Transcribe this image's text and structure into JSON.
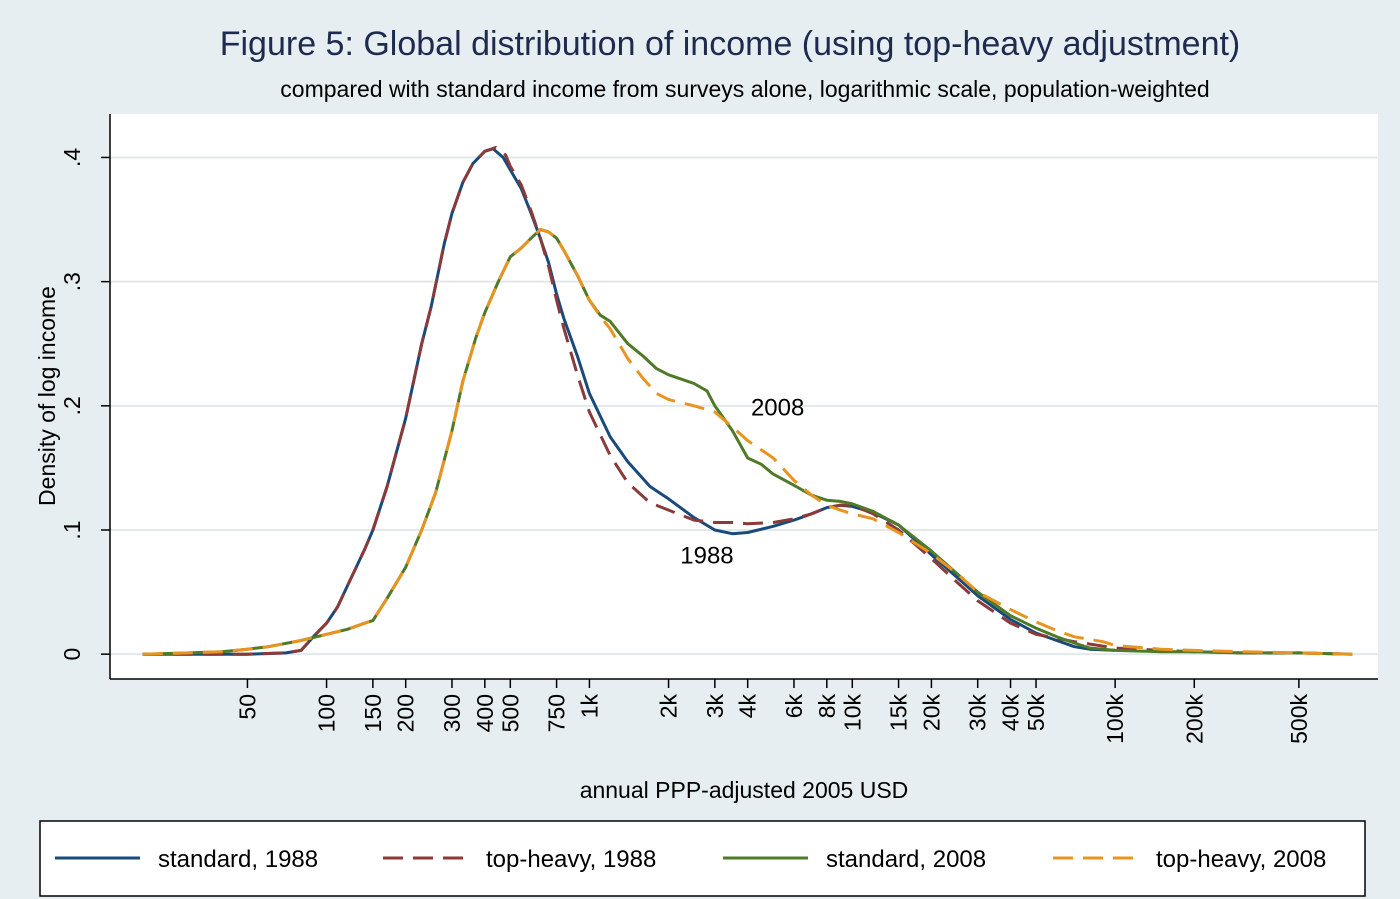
{
  "chart_data": {
    "type": "line",
    "title": "Figure 5: Global distribution of income (using top-heavy adjustment)",
    "subtitle": "compared with standard income from surveys alone, logarithmic scale, population-weighted",
    "xlabel": "annual PPP-adjusted 2005 USD",
    "ylabel": "Density of log income",
    "x_scale": "log",
    "xlim": [
      15,
      1000000
    ],
    "ylim": [
      -0.02,
      0.435
    ],
    "grid": true,
    "legend_position": "bottom",
    "x_ticks": [
      {
        "value": 50,
        "label": "50"
      },
      {
        "value": 100,
        "label": "100"
      },
      {
        "value": 150,
        "label": "150"
      },
      {
        "value": 200,
        "label": "200"
      },
      {
        "value": 300,
        "label": "300"
      },
      {
        "value": 400,
        "label": "400"
      },
      {
        "value": 500,
        "label": "500"
      },
      {
        "value": 750,
        "label": "750"
      },
      {
        "value": 1000,
        "label": "1k"
      },
      {
        "value": 2000,
        "label": "2k"
      },
      {
        "value": 3000,
        "label": "3k"
      },
      {
        "value": 4000,
        "label": "4k"
      },
      {
        "value": 6000,
        "label": "6k"
      },
      {
        "value": 8000,
        "label": "8k"
      },
      {
        "value": 10000,
        "label": "10k"
      },
      {
        "value": 15000,
        "label": "15k"
      },
      {
        "value": 20000,
        "label": "20k"
      },
      {
        "value": 30000,
        "label": "30k"
      },
      {
        "value": 40000,
        "label": "40k"
      },
      {
        "value": 50000,
        "label": "50k"
      },
      {
        "value": 100000,
        "label": "100k"
      },
      {
        "value": 200000,
        "label": "200k"
      },
      {
        "value": 500000,
        "label": "500k"
      }
    ],
    "y_ticks": [
      {
        "value": 0,
        "label": "0"
      },
      {
        "value": 0.1,
        "label": ".1"
      },
      {
        "value": 0.2,
        "label": ".2"
      },
      {
        "value": 0.3,
        "label": ".3"
      },
      {
        "value": 0.4,
        "label": ".4"
      }
    ],
    "annotations": [
      {
        "text": "2008",
        "x": 5200,
        "y": 0.192
      },
      {
        "text": "1988",
        "x": 2800,
        "y": 0.073
      }
    ],
    "series": [
      {
        "name": "standard, 1988",
        "color": "#1a4a7a",
        "dash": "solid",
        "points": [
          [
            20,
            0
          ],
          [
            30,
            0
          ],
          [
            50,
            0
          ],
          [
            70,
            0.001
          ],
          [
            80,
            0.003
          ],
          [
            90,
            0.015
          ],
          [
            100,
            0.025
          ],
          [
            110,
            0.038
          ],
          [
            120,
            0.055
          ],
          [
            140,
            0.085
          ],
          [
            150,
            0.1
          ],
          [
            170,
            0.135
          ],
          [
            200,
            0.19
          ],
          [
            230,
            0.25
          ],
          [
            250,
            0.28
          ],
          [
            280,
            0.33
          ],
          [
            300,
            0.355
          ],
          [
            330,
            0.38
          ],
          [
            360,
            0.395
          ],
          [
            400,
            0.405
          ],
          [
            430,
            0.407
          ],
          [
            470,
            0.4
          ],
          [
            500,
            0.39
          ],
          [
            550,
            0.375
          ],
          [
            600,
            0.355
          ],
          [
            650,
            0.335
          ],
          [
            700,
            0.315
          ],
          [
            750,
            0.29
          ],
          [
            800,
            0.27
          ],
          [
            900,
            0.24
          ],
          [
            1000,
            0.21
          ],
          [
            1200,
            0.175
          ],
          [
            1400,
            0.155
          ],
          [
            1700,
            0.135
          ],
          [
            2000,
            0.125
          ],
          [
            2500,
            0.11
          ],
          [
            3000,
            0.1
          ],
          [
            3500,
            0.097
          ],
          [
            4000,
            0.098
          ],
          [
            5000,
            0.103
          ],
          [
            6000,
            0.108
          ],
          [
            7000,
            0.113
          ],
          [
            8000,
            0.118
          ],
          [
            9000,
            0.12
          ],
          [
            10000,
            0.119
          ],
          [
            12000,
            0.114
          ],
          [
            15000,
            0.104
          ],
          [
            20000,
            0.08
          ],
          [
            25000,
            0.062
          ],
          [
            30000,
            0.047
          ],
          [
            40000,
            0.028
          ],
          [
            50000,
            0.017
          ],
          [
            60000,
            0.011
          ],
          [
            70000,
            0.006
          ],
          [
            80000,
            0.004
          ],
          [
            100000,
            0.003
          ]
        ]
      },
      {
        "name": "top-heavy, 1988",
        "color": "#8b3a3a",
        "dash": "dashed",
        "points": [
          [
            20,
            0
          ],
          [
            30,
            0
          ],
          [
            50,
            0
          ],
          [
            70,
            0.001
          ],
          [
            80,
            0.003
          ],
          [
            90,
            0.015
          ],
          [
            100,
            0.025
          ],
          [
            110,
            0.038
          ],
          [
            120,
            0.055
          ],
          [
            140,
            0.085
          ],
          [
            150,
            0.1
          ],
          [
            170,
            0.135
          ],
          [
            200,
            0.19
          ],
          [
            230,
            0.25
          ],
          [
            250,
            0.28
          ],
          [
            280,
            0.33
          ],
          [
            300,
            0.355
          ],
          [
            330,
            0.38
          ],
          [
            360,
            0.395
          ],
          [
            400,
            0.405
          ],
          [
            440,
            0.408
          ],
          [
            480,
            0.402
          ],
          [
            500,
            0.393
          ],
          [
            550,
            0.378
          ],
          [
            600,
            0.357
          ],
          [
            650,
            0.335
          ],
          [
            700,
            0.312
          ],
          [
            750,
            0.285
          ],
          [
            800,
            0.262
          ],
          [
            900,
            0.225
          ],
          [
            1000,
            0.195
          ],
          [
            1200,
            0.16
          ],
          [
            1400,
            0.138
          ],
          [
            1700,
            0.122
          ],
          [
            2000,
            0.116
          ],
          [
            2500,
            0.108
          ],
          [
            3000,
            0.106
          ],
          [
            3500,
            0.106
          ],
          [
            4000,
            0.105
          ],
          [
            5000,
            0.106
          ],
          [
            6000,
            0.109
          ],
          [
            7000,
            0.113
          ],
          [
            8000,
            0.118
          ],
          [
            9000,
            0.12
          ],
          [
            10000,
            0.12
          ],
          [
            12000,
            0.113
          ],
          [
            15000,
            0.1
          ],
          [
            20000,
            0.077
          ],
          [
            25000,
            0.058
          ],
          [
            30000,
            0.043
          ],
          [
            40000,
            0.025
          ],
          [
            50000,
            0.016
          ],
          [
            70000,
            0.01
          ],
          [
            100000,
            0.005
          ],
          [
            150000,
            0.003
          ],
          [
            200000,
            0.002
          ],
          [
            300000,
            0.001
          ],
          [
            500000,
            0.001
          ],
          [
            800000,
            0
          ]
        ]
      },
      {
        "name": "standard, 2008",
        "color": "#4f7a28",
        "dash": "solid",
        "points": [
          [
            20,
            0
          ],
          [
            30,
            0.001
          ],
          [
            40,
            0.002
          ],
          [
            50,
            0.004
          ],
          [
            60,
            0.006
          ],
          [
            80,
            0.011
          ],
          [
            100,
            0.016
          ],
          [
            120,
            0.02
          ],
          [
            140,
            0.025
          ],
          [
            150,
            0.027
          ],
          [
            170,
            0.045
          ],
          [
            200,
            0.07
          ],
          [
            230,
            0.1
          ],
          [
            260,
            0.13
          ],
          [
            300,
            0.18
          ],
          [
            330,
            0.22
          ],
          [
            370,
            0.255
          ],
          [
            400,
            0.275
          ],
          [
            450,
            0.3
          ],
          [
            500,
            0.32
          ],
          [
            550,
            0.327
          ],
          [
            600,
            0.335
          ],
          [
            650,
            0.342
          ],
          [
            700,
            0.34
          ],
          [
            750,
            0.335
          ],
          [
            800,
            0.325
          ],
          [
            900,
            0.305
          ],
          [
            1000,
            0.285
          ],
          [
            1100,
            0.273
          ],
          [
            1200,
            0.268
          ],
          [
            1400,
            0.25
          ],
          [
            1600,
            0.24
          ],
          [
            1800,
            0.23
          ],
          [
            2000,
            0.225
          ],
          [
            2500,
            0.218
          ],
          [
            2800,
            0.212
          ],
          [
            3000,
            0.2
          ],
          [
            3500,
            0.18
          ],
          [
            4000,
            0.158
          ],
          [
            4500,
            0.153
          ],
          [
            5000,
            0.145
          ],
          [
            6000,
            0.136
          ],
          [
            7000,
            0.128
          ],
          [
            8000,
            0.124
          ],
          [
            9000,
            0.123
          ],
          [
            10000,
            0.121
          ],
          [
            12000,
            0.115
          ],
          [
            15000,
            0.104
          ],
          [
            20000,
            0.083
          ],
          [
            25000,
            0.065
          ],
          [
            30000,
            0.05
          ],
          [
            40000,
            0.031
          ],
          [
            50000,
            0.021
          ],
          [
            60000,
            0.014
          ],
          [
            70000,
            0.009
          ],
          [
            80000,
            0.005
          ],
          [
            100000,
            0.003
          ],
          [
            150000,
            0.002
          ],
          [
            200000,
            0.002
          ],
          [
            300000,
            0.001
          ],
          [
            500000,
            0.001
          ],
          [
            800000,
            0
          ]
        ]
      },
      {
        "name": "top-heavy, 2008",
        "color": "#e8941f",
        "dash": "dashed",
        "points": [
          [
            20,
            0
          ],
          [
            30,
            0.001
          ],
          [
            40,
            0.002
          ],
          [
            50,
            0.004
          ],
          [
            60,
            0.006
          ],
          [
            80,
            0.011
          ],
          [
            100,
            0.016
          ],
          [
            120,
            0.02
          ],
          [
            140,
            0.025
          ],
          [
            150,
            0.027
          ],
          [
            170,
            0.045
          ],
          [
            200,
            0.07
          ],
          [
            230,
            0.1
          ],
          [
            260,
            0.13
          ],
          [
            300,
            0.18
          ],
          [
            330,
            0.22
          ],
          [
            370,
            0.255
          ],
          [
            400,
            0.275
          ],
          [
            450,
            0.3
          ],
          [
            500,
            0.32
          ],
          [
            550,
            0.327
          ],
          [
            600,
            0.335
          ],
          [
            650,
            0.342
          ],
          [
            700,
            0.34
          ],
          [
            750,
            0.335
          ],
          [
            800,
            0.325
          ],
          [
            900,
            0.305
          ],
          [
            1000,
            0.285
          ],
          [
            1100,
            0.272
          ],
          [
            1200,
            0.262
          ],
          [
            1400,
            0.238
          ],
          [
            1600,
            0.222
          ],
          [
            1800,
            0.21
          ],
          [
            2000,
            0.205
          ],
          [
            2500,
            0.2
          ],
          [
            3000,
            0.195
          ],
          [
            3500,
            0.183
          ],
          [
            4000,
            0.172
          ],
          [
            5000,
            0.158
          ],
          [
            6000,
            0.14
          ],
          [
            7000,
            0.128
          ],
          [
            8000,
            0.12
          ],
          [
            9000,
            0.116
          ],
          [
            10000,
            0.113
          ],
          [
            12000,
            0.109
          ],
          [
            15000,
            0.098
          ],
          [
            20000,
            0.081
          ],
          [
            25000,
            0.065
          ],
          [
            30000,
            0.05
          ],
          [
            40000,
            0.036
          ],
          [
            50000,
            0.026
          ],
          [
            60000,
            0.019
          ],
          [
            70000,
            0.014
          ],
          [
            90000,
            0.01
          ],
          [
            100000,
            0.007
          ],
          [
            150000,
            0.004
          ],
          [
            200000,
            0.003
          ],
          [
            300000,
            0.002
          ],
          [
            500000,
            0.001
          ],
          [
            800000,
            0
          ]
        ]
      }
    ]
  }
}
